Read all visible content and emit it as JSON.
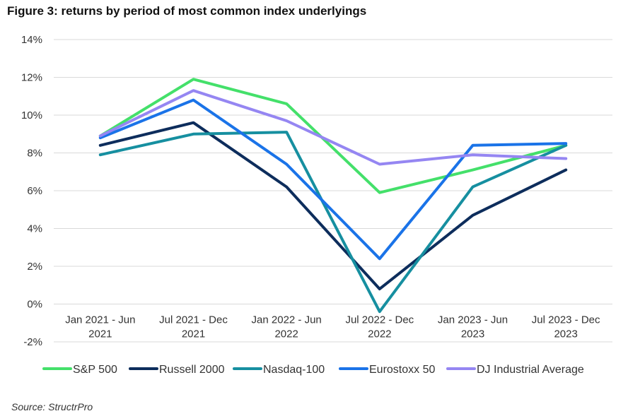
{
  "title": "Figure 3: returns by period of most common index underlyings",
  "source": "Source: StructrPro",
  "chart_data": {
    "type": "line",
    "categories": [
      [
        "Jan 2021 - Jun",
        "2021"
      ],
      [
        "Jul 2021 - Dec",
        "2021"
      ],
      [
        "Jan 2022 - Jun",
        "2022"
      ],
      [
        "Jul 2022 - Dec",
        "2022"
      ],
      [
        "Jan 2023 - Jun",
        "2023"
      ],
      [
        "Jul 2023 - Dec",
        "2023"
      ]
    ],
    "ylim": [
      -2,
      14
    ],
    "yticks": [
      -2,
      0,
      2,
      4,
      6,
      8,
      10,
      12,
      14
    ],
    "ytick_labels": [
      "-2%",
      "0%",
      "2%",
      "4%",
      "6%",
      "8%",
      "10%",
      "12%",
      "14%"
    ],
    "grid": true,
    "legend_position": "bottom",
    "series": [
      {
        "name": "S&P 500",
        "color": "#44e06a",
        "values": [
          8.9,
          11.9,
          10.6,
          5.9,
          7.1,
          8.4
        ]
      },
      {
        "name": "Russell 2000",
        "color": "#0d2d5c",
        "values": [
          8.4,
          9.6,
          6.2,
          0.8,
          4.7,
          7.1
        ]
      },
      {
        "name": "Nasdaq-100",
        "color": "#168fa0",
        "values": [
          7.9,
          9.0,
          9.1,
          -0.4,
          6.2,
          8.4
        ]
      },
      {
        "name": "Eurostoxx 50",
        "color": "#1a73e8",
        "values": [
          8.8,
          10.8,
          7.4,
          2.4,
          8.4,
          8.5
        ]
      },
      {
        "name": "DJ Industrial Average",
        "color": "#9586f2",
        "values": [
          8.9,
          11.3,
          9.7,
          7.4,
          7.9,
          7.7
        ]
      }
    ]
  }
}
